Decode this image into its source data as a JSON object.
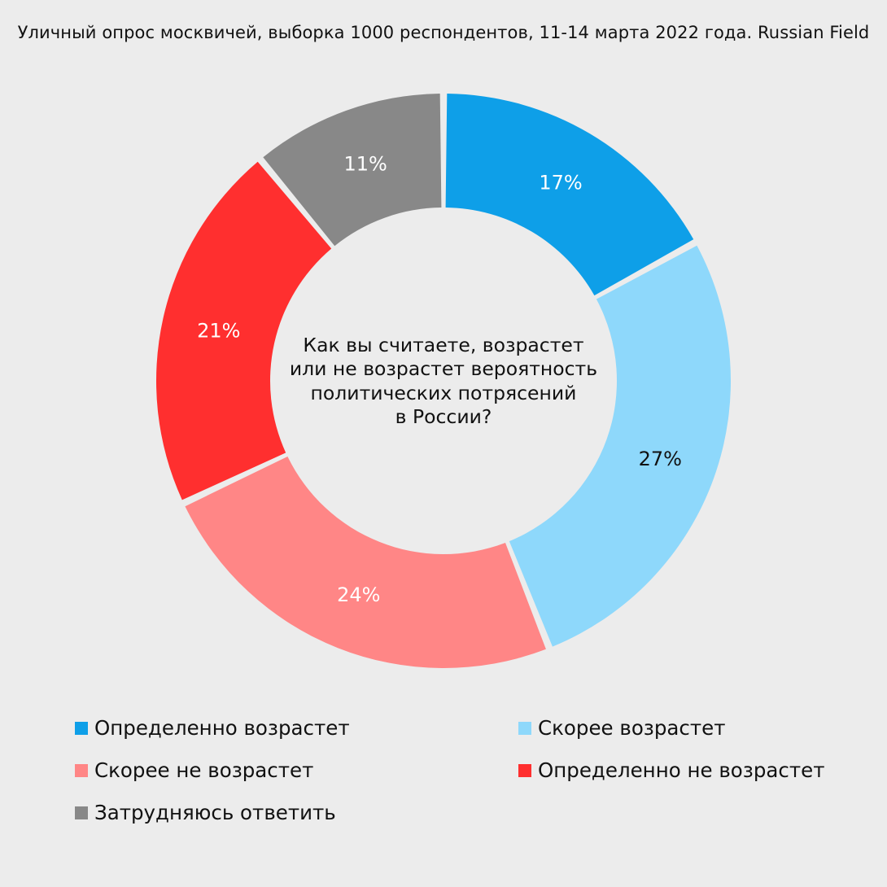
{
  "header": {
    "subtitle": "Уличный опрос москвичей, выборка 1000 респондентов, 11-14 марта 2022 года. Russian Field"
  },
  "chart_data": {
    "type": "pie",
    "donut": true,
    "title": "",
    "center_text": [
      "Как вы считаете, возрастет",
      "или не возрастет вероятность",
      "политических потрясений",
      "в России?"
    ],
    "slices": [
      {
        "name": "Определенно возрастет",
        "value": 17,
        "label": "17%",
        "color": "#0e9fe8",
        "label_color": "#ffffff"
      },
      {
        "name": "Скорее возрастет",
        "value": 27,
        "label": "27%",
        "color": "#8ed8fb",
        "label_color": "#111111"
      },
      {
        "name": "Скорее не возрастет",
        "value": 24,
        "label": "24%",
        "color": "#ff8686",
        "label_color": "#ffffff"
      },
      {
        "name": "Определенно не возрастет",
        "value": 21,
        "label": "21%",
        "color": "#ff2f2f",
        "label_color": "#ffffff"
      },
      {
        "name": "Затрудняюсь ответить",
        "value": 11,
        "label": "11%",
        "color": "#888888",
        "label_color": "#ffffff"
      }
    ],
    "legend": {
      "placement": "bottom",
      "items": [
        {
          "label": "Определенно возрастет",
          "color": "#0e9fe8"
        },
        {
          "label": "Скорее возрастет",
          "color": "#8ed8fb"
        },
        {
          "label": "Скорее не возрастет",
          "color": "#ff8686"
        },
        {
          "label": "Определенно не возрастет",
          "color": "#ff2f2f"
        },
        {
          "label": "Затрудняюсь ответить",
          "color": "#888888"
        }
      ]
    }
  }
}
